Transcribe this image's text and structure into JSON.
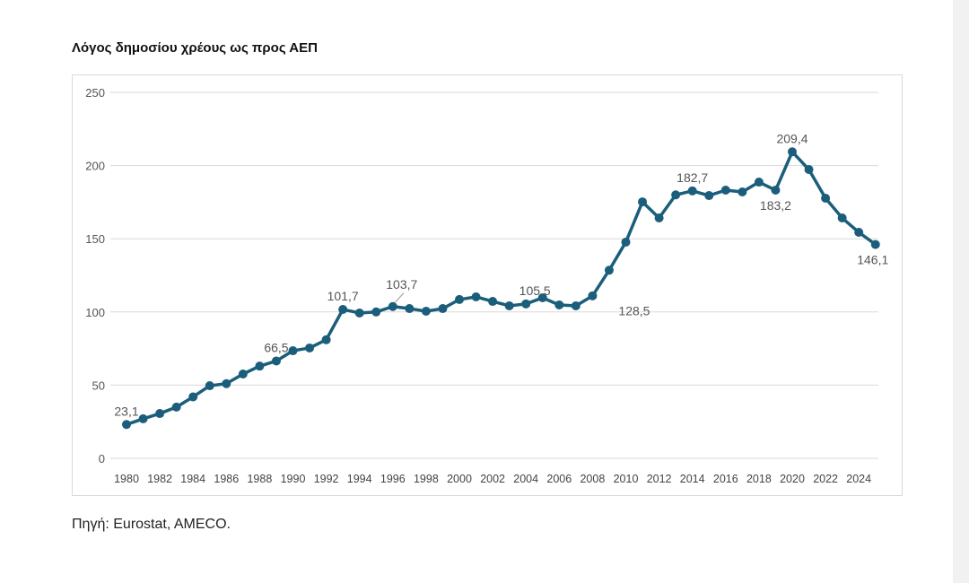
{
  "title": "Λόγος δημοσίου χρέους ως προς ΑΕΠ",
  "source": "Πηγή: Eurostat, AMECO.",
  "chart_data": {
    "type": "line",
    "title": "Λόγος δημοσίου χρέους ως προς ΑΕΠ",
    "xlabel": "",
    "ylabel": "",
    "ylim": [
      0,
      250
    ],
    "yticks": [
      "0",
      "50",
      "100",
      "150",
      "200",
      "250"
    ],
    "xticks": [
      "1980",
      "1982",
      "1984",
      "1986",
      "1988",
      "1990",
      "1992",
      "1994",
      "1996",
      "1998",
      "2000",
      "2002",
      "2004",
      "2006",
      "2008",
      "2010",
      "2012",
      "2014",
      "2016",
      "2018",
      "2020",
      "2022",
      "2024"
    ],
    "grid": true,
    "color": "#1b5e7b",
    "x": [
      1980,
      1981,
      1982,
      1983,
      1984,
      1985,
      1986,
      1987,
      1988,
      1989,
      1990,
      1991,
      1992,
      1993,
      1994,
      1995,
      1996,
      1997,
      1998,
      1999,
      2000,
      2001,
      2002,
      2003,
      2004,
      2005,
      2006,
      2007,
      2008,
      2009,
      2010,
      2011,
      2012,
      2013,
      2014,
      2015,
      2016,
      2017,
      2018,
      2019,
      2020,
      2021,
      2022,
      2023,
      2024,
      2025
    ],
    "values": [
      23.1,
      27,
      30.6,
      35,
      42,
      49.6,
      51,
      57.6,
      63,
      66.5,
      73.5,
      75.4,
      81,
      101.7,
      99.3,
      100,
      103.7,
      102.3,
      100.5,
      102.3,
      108.5,
      110.3,
      107.2,
      104.2,
      105.5,
      109.7,
      104.8,
      104.2,
      111,
      128.5,
      147.7,
      175.2,
      164.2,
      180,
      182.7,
      179.5,
      183.2,
      182,
      188.7,
      183.2,
      209.4,
      197.3,
      177.7,
      164.2,
      154.4,
      146.1
    ],
    "data_labels": [
      {
        "x": 1980,
        "text": "23,1",
        "pos": "above"
      },
      {
        "x": 1989,
        "text": "66,5",
        "pos": "above"
      },
      {
        "x": 1993,
        "text": "101,7",
        "pos": "above"
      },
      {
        "x": 1996,
        "text": "103,7",
        "pos": "above"
      },
      {
        "x": 2004,
        "text": "105,5",
        "pos": "above"
      },
      {
        "x": 2009,
        "text": "128,5",
        "pos": "below"
      },
      {
        "x": 2014,
        "text": "182,7",
        "pos": "above"
      },
      {
        "x": 2019,
        "text": "183,2",
        "pos": "below"
      },
      {
        "x": 2020,
        "text": "209,4",
        "pos": "above"
      },
      {
        "x": 2025,
        "text": "146,1",
        "pos": "below"
      }
    ]
  }
}
